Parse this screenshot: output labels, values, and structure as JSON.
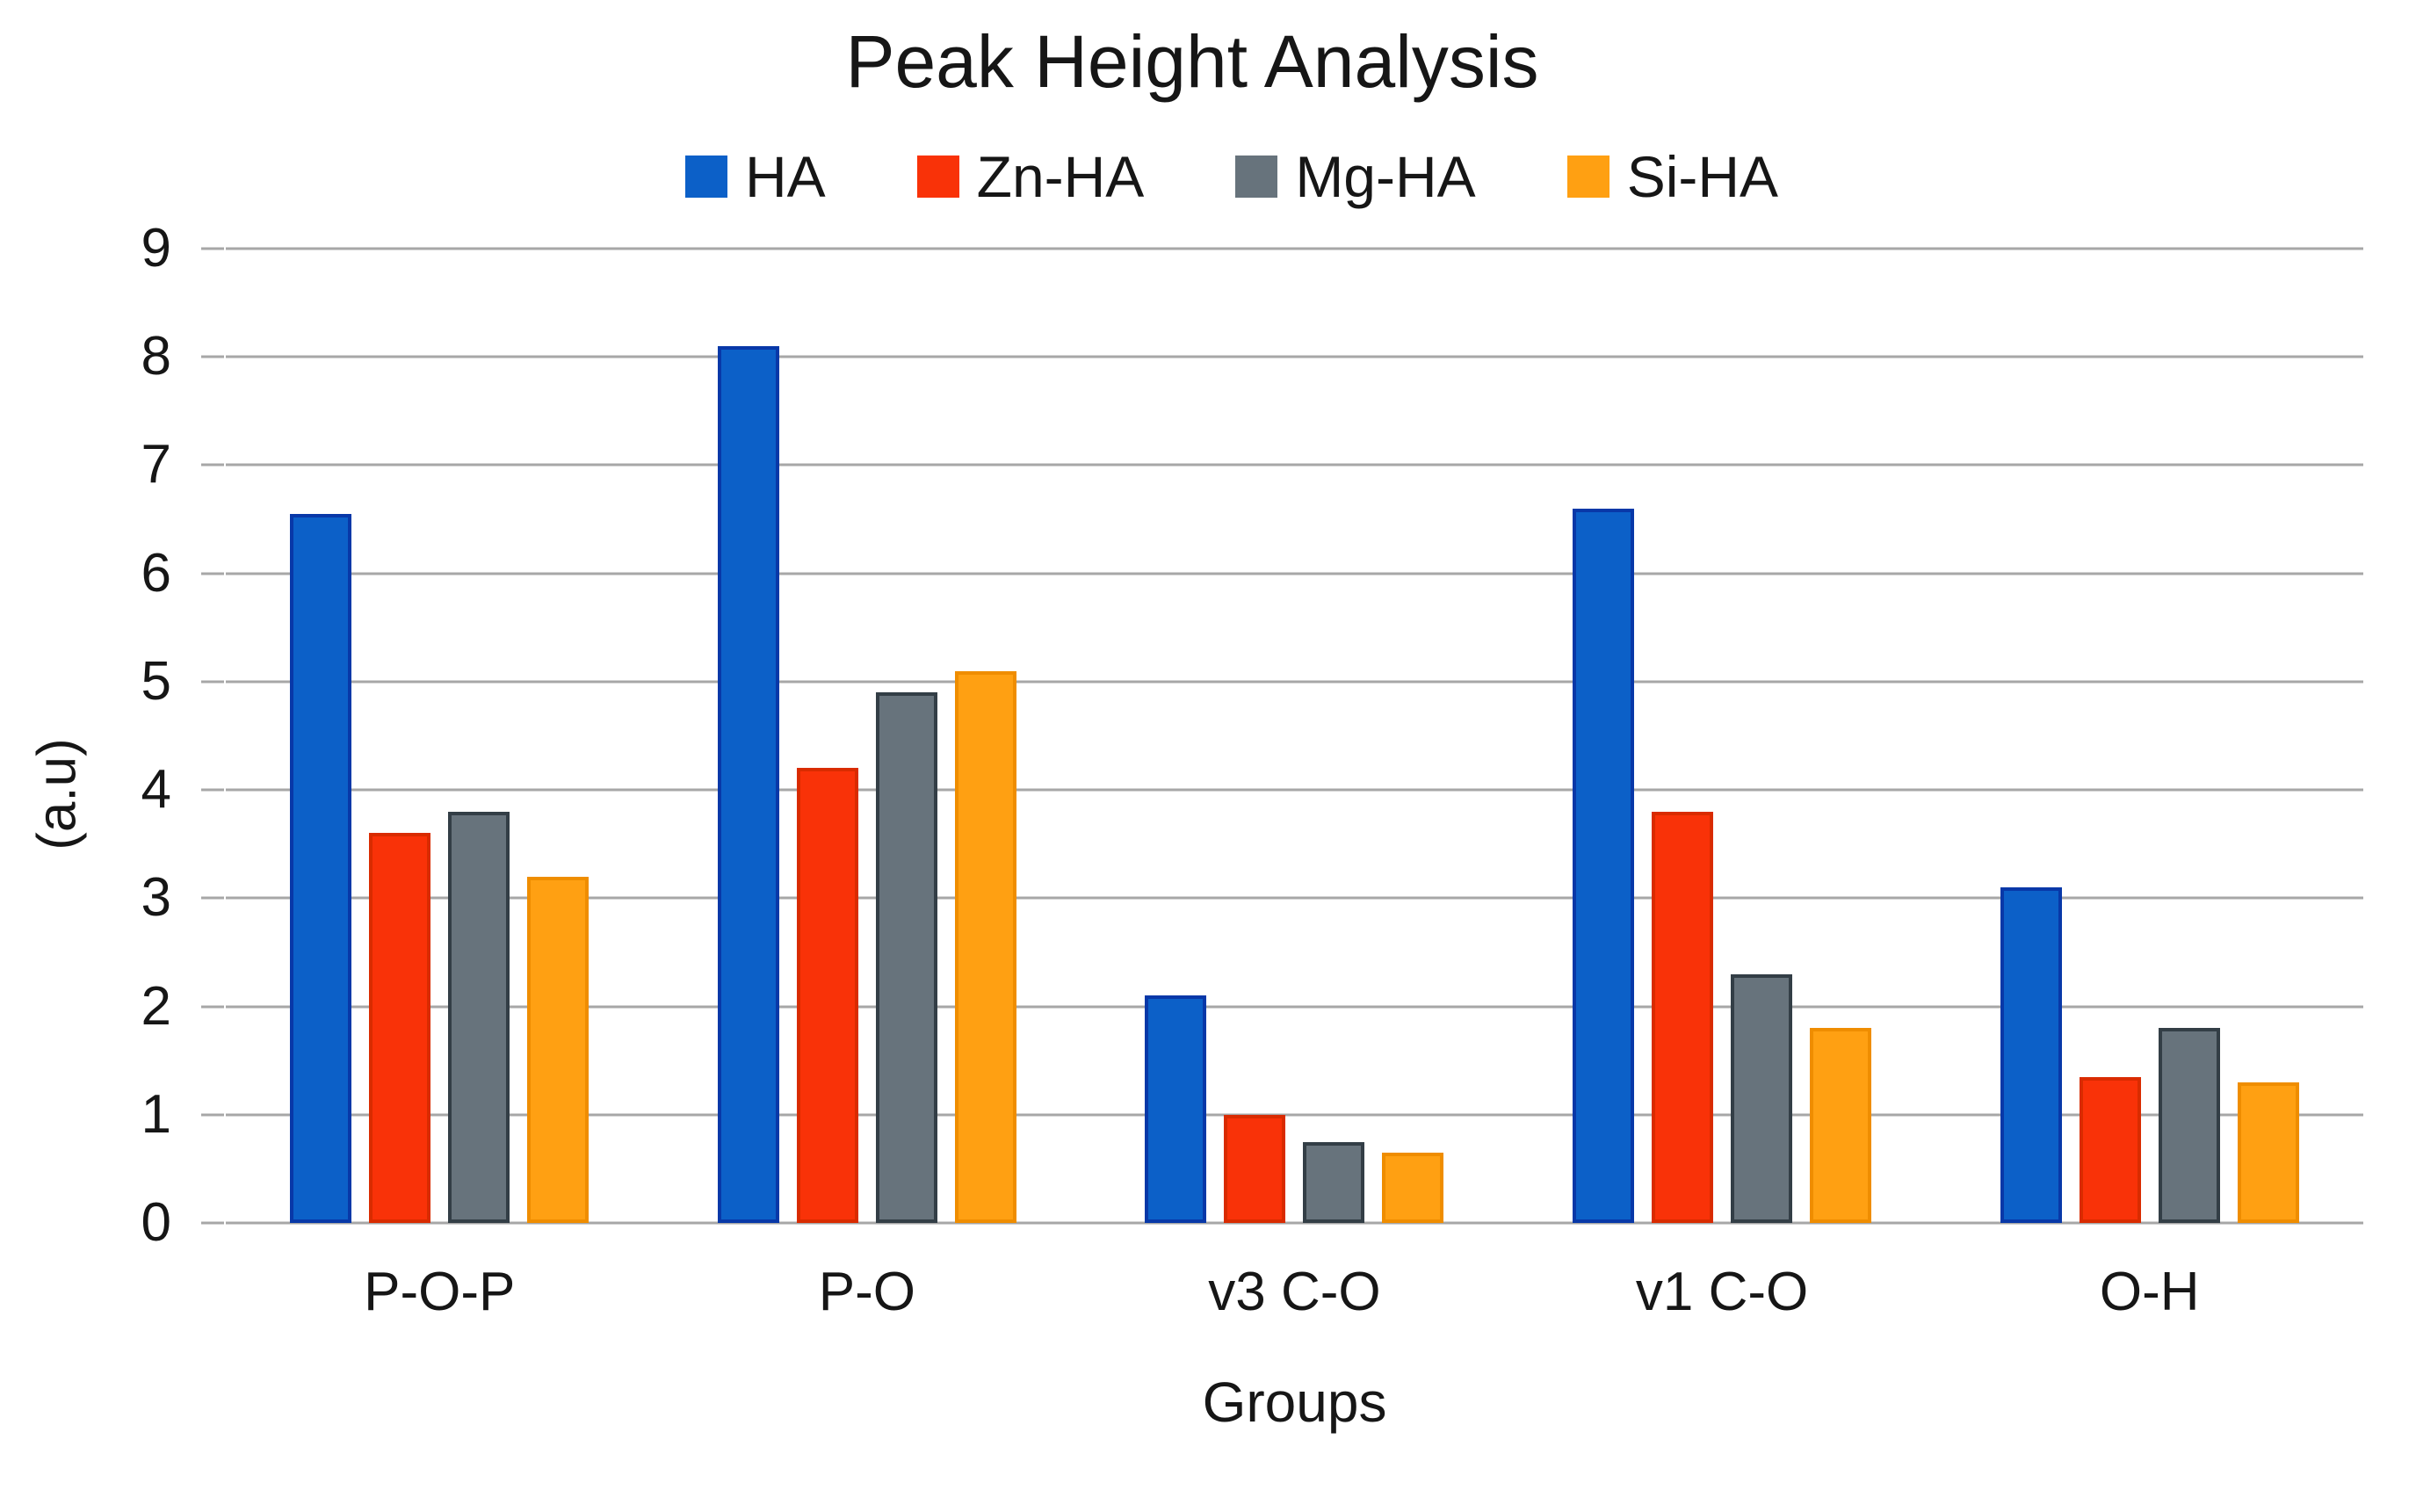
{
  "title": "Peak Height Analysis",
  "y_axis": {
    "label": "(a.u)",
    "ticks": [
      9,
      8,
      7,
      6,
      5,
      4,
      3,
      2,
      1,
      0
    ]
  },
  "x_axis": {
    "label": "Groups"
  },
  "legend": {
    "items": [
      "HA",
      "Zn-HA",
      "Mg-HA",
      "Si-HA"
    ],
    "position": "top"
  },
  "colors": {
    "background": "#ffffff",
    "text": "#161616",
    "gridline": "#a7a7a7",
    "series": [
      {
        "name": "HA",
        "fill": "#0c60c8",
        "border": "#0838a8"
      },
      {
        "name": "Zn-HA",
        "fill": "#f93208",
        "border": "#d92b00"
      },
      {
        "name": "Mg-HA",
        "fill": "#67737c",
        "border": "#333e46"
      },
      {
        "name": "Si-HA",
        "fill": "#ffa012",
        "border": "#ef8d00"
      }
    ]
  },
  "chart_data": {
    "type": "bar",
    "title": "Peak Height Analysis",
    "xlabel": "Groups",
    "ylabel": "(a.u)",
    "ylim": [
      0,
      9
    ],
    "grid": true,
    "legend_position": "top",
    "categories": [
      "P-O-P",
      "P-O",
      "v3 C-O",
      "v1 C-O",
      "O-H"
    ],
    "series": [
      {
        "name": "HA",
        "values": [
          6.55,
          8.1,
          2.1,
          6.6,
          3.1
        ]
      },
      {
        "name": "Zn-HA",
        "values": [
          3.6,
          4.2,
          1.0,
          3.8,
          1.35
        ]
      },
      {
        "name": "Mg-HA",
        "values": [
          3.8,
          4.9,
          0.75,
          2.3,
          1.8
        ]
      },
      {
        "name": "Si-HA",
        "values": [
          3.2,
          5.1,
          0.65,
          1.8,
          1.3
        ]
      }
    ]
  }
}
